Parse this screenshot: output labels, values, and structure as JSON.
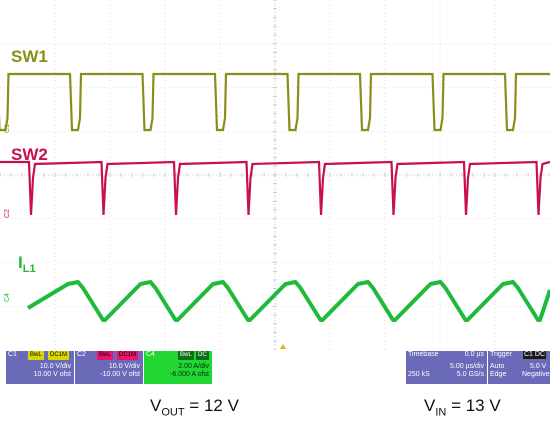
{
  "traces": {
    "sw1": {
      "label": "SW1",
      "color": "#8c8c1a"
    },
    "sw2": {
      "label": "SW2",
      "color": "#c8104e"
    },
    "il1": {
      "label_main": "I",
      "label_sub": "L1",
      "color": "#1fba3c"
    }
  },
  "channel_markers": {
    "c1": "C1",
    "c2": "C2",
    "c4": "C4"
  },
  "panels": {
    "c1": {
      "name": "C1",
      "bw": "BwL",
      "coupling": "DC1M",
      "scale": "10.0 V/div",
      "offset": "10.00 V ofst",
      "color": "#6a6ab8"
    },
    "c2": {
      "name": "C2",
      "bw": "BwL",
      "coupling": "DC1M",
      "scale": "10.0 V/div",
      "offset": "-10.00 V ofst",
      "color": "#6a6ab8"
    },
    "c4": {
      "name": "C4",
      "bw": "BwL",
      "coupling": "DC",
      "scale": "2.00 A/div",
      "offset": "-6.000 A ofst",
      "color": "#22d633"
    }
  },
  "timebase": {
    "title": "Timebase",
    "delay": "0.0 µs",
    "scale": "5.00 µs/div",
    "samples": "250 kS",
    "rate": "5.0 GS/s"
  },
  "trigger": {
    "title": "Trigger",
    "channels": "C1 DC",
    "mode": "Auto",
    "level": "5.0 V",
    "type": "Edge",
    "slope": "Negative"
  },
  "captions": {
    "vout": {
      "main": "V",
      "sub": "OUT",
      "rest": " = 12 V"
    },
    "vin": {
      "main": "V",
      "sub": "IN",
      "rest": " = 13 V"
    }
  }
}
